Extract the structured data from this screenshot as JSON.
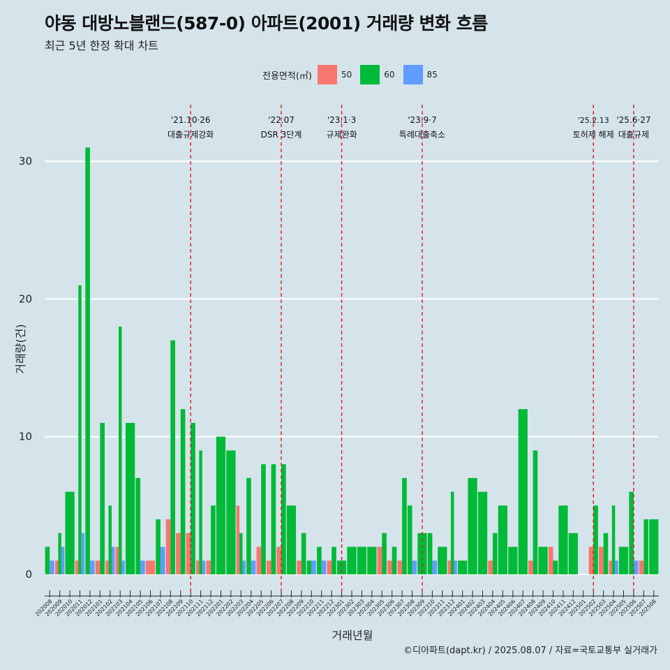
{
  "title": "야동 대방노블랜드(587-0) 아파트(2001) 거래량 변화 흐름",
  "subtitle": "최근 5년 한정 확대 차트",
  "caption": "©디아파트(dapt.kr) / 2025.08.07 / 자료=국토교통부 실거래가",
  "legend": {
    "title": "전용면적(㎡)",
    "items": [
      {
        "label": "50",
        "color": "#f8766d"
      },
      {
        "label": "60",
        "color": "#00ba38"
      },
      {
        "label": "85",
        "color": "#619cff"
      }
    ]
  },
  "chart_data": {
    "type": "bar",
    "xlabel": "거래년월",
    "ylabel": "거래량(건)",
    "ylim": [
      0,
      31
    ],
    "yticks": [
      0,
      10,
      20,
      30
    ],
    "grid": true,
    "legend_position": "top",
    "categories": [
      "202008",
      "202009",
      "202010",
      "202011",
      "202012",
      "202101",
      "202102",
      "202103",
      "202104",
      "202105",
      "202106",
      "202107",
      "202108",
      "202109",
      "202110",
      "202111",
      "202112",
      "202201",
      "202202",
      "202203",
      "202204",
      "202205",
      "202206",
      "202207",
      "202208",
      "202209",
      "202210",
      "202211",
      "202212",
      "202301",
      "202302",
      "202303",
      "202304",
      "202305",
      "202306",
      "202307",
      "202308",
      "202309",
      "202310",
      "202311",
      "202312",
      "202401",
      "202402",
      "202403",
      "202404",
      "202405",
      "202406",
      "202407",
      "202408",
      "202409",
      "202410",
      "202411",
      "202412",
      "202501",
      "202502",
      "202503",
      "202504",
      "202505",
      "202506",
      "202507",
      "202508"
    ],
    "series": [
      {
        "name": "50",
        "values": [
          0,
          1,
          0,
          1,
          0,
          1,
          1,
          2,
          0,
          0,
          1,
          0,
          4,
          3,
          3,
          1,
          1,
          0,
          0,
          5,
          0,
          2,
          1,
          2,
          0,
          1,
          0,
          0,
          1,
          0,
          0,
          0,
          0,
          2,
          1,
          1,
          0,
          0,
          0,
          0,
          1,
          0,
          0,
          0,
          1,
          0,
          0,
          0,
          1,
          0,
          2,
          0,
          0,
          0,
          2,
          2,
          1,
          0,
          0,
          1,
          0
        ]
      },
      {
        "name": "60",
        "values": [
          2,
          3,
          6,
          21,
          31,
          11,
          5,
          18,
          11,
          7,
          0,
          4,
          17,
          12,
          11,
          9,
          5,
          10,
          9,
          3,
          7,
          8,
          8,
          8,
          5,
          3,
          1,
          2,
          2,
          1,
          2,
          2,
          2,
          3,
          2,
          7,
          5,
          3,
          3,
          2,
          6,
          1,
          7,
          6,
          3,
          5,
          2,
          12,
          9,
          2,
          1,
          5,
          3,
          0,
          5,
          3,
          5,
          2,
          6,
          4,
          4
        ]
      },
      {
        "name": "85",
        "values": [
          1,
          2,
          0,
          3,
          1,
          0,
          2,
          1,
          0,
          1,
          0,
          2,
          0,
          0,
          0,
          1,
          0,
          0,
          0,
          1,
          1,
          0,
          0,
          0,
          0,
          0,
          1,
          1,
          0,
          0,
          0,
          0,
          0,
          0,
          0,
          0,
          1,
          0,
          1,
          0,
          1,
          0,
          0,
          0,
          0,
          0,
          0,
          0,
          0,
          0,
          0,
          0,
          0,
          0,
          0,
          0,
          1,
          0,
          1,
          0,
          0
        ]
      }
    ],
    "events": [
      {
        "month": "202110",
        "date": "'21.10·26",
        "text": "대출규제강화"
      },
      {
        "month": "202207",
        "date": "'22.07",
        "text": "DSR 3단계"
      },
      {
        "month": "202301",
        "date": "'23.1·3",
        "text": "규제완화"
      },
      {
        "month": "202309",
        "date": "'23.9·7",
        "text": "특례대출축소"
      },
      {
        "month": "202502",
        "date": "'25.2.13",
        "text": "토허제 해제"
      },
      {
        "month": "202506",
        "date": "'25.6·27",
        "text": "대출규제"
      }
    ]
  }
}
